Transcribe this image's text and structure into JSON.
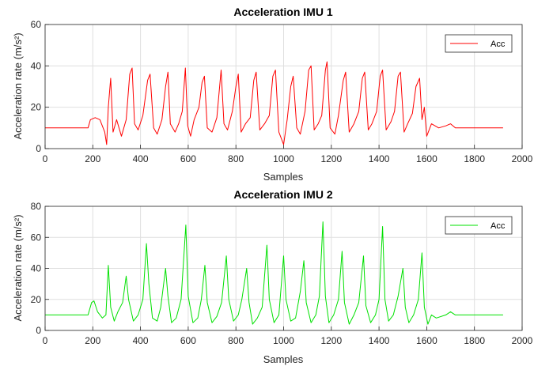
{
  "chart_data": [
    {
      "type": "line",
      "title": "Acceleration IMU 1",
      "xlabel": "Samples",
      "ylabel": "Acceleration rate (m/s²)",
      "xlim": [
        0,
        2000
      ],
      "ylim": [
        0,
        60
      ],
      "xticks": [
        "0",
        "200",
        "400",
        "600",
        "800",
        "1000",
        "1200",
        "1400",
        "1600",
        "1800",
        "2000"
      ],
      "yticks": [
        "0",
        "20",
        "40",
        "60"
      ],
      "grid": true,
      "legend": "top-right",
      "series": [
        {
          "name": "Acc",
          "color": "#ff0000",
          "points": [
            [
              0,
              10
            ],
            [
              180,
              10
            ],
            [
              190,
              14
            ],
            [
              210,
              15
            ],
            [
              230,
              14
            ],
            [
              250,
              8
            ],
            [
              258,
              2
            ],
            [
              265,
              20
            ],
            [
              275,
              34
            ],
            [
              285,
              8
            ],
            [
              300,
              14
            ],
            [
              320,
              6
            ],
            [
              340,
              14
            ],
            [
              355,
              36
            ],
            [
              365,
              39
            ],
            [
              375,
              12
            ],
            [
              390,
              9
            ],
            [
              410,
              16
            ],
            [
              430,
              33
            ],
            [
              440,
              36
            ],
            [
              455,
              10
            ],
            [
              470,
              7
            ],
            [
              490,
              14
            ],
            [
              505,
              30
            ],
            [
              515,
              37
            ],
            [
              525,
              12
            ],
            [
              545,
              8
            ],
            [
              560,
              12
            ],
            [
              575,
              18
            ],
            [
              588,
              39
            ],
            [
              598,
              11
            ],
            [
              610,
              6
            ],
            [
              625,
              14
            ],
            [
              645,
              20
            ],
            [
              658,
              32
            ],
            [
              668,
              35
            ],
            [
              680,
              10
            ],
            [
              700,
              8
            ],
            [
              720,
              15
            ],
            [
              738,
              38
            ],
            [
              750,
              12
            ],
            [
              765,
              9
            ],
            [
              785,
              18
            ],
            [
              800,
              30
            ],
            [
              810,
              36
            ],
            [
              822,
              8
            ],
            [
              840,
              12
            ],
            [
              860,
              15
            ],
            [
              875,
              33
            ],
            [
              885,
              37
            ],
            [
              900,
              9
            ],
            [
              920,
              12
            ],
            [
              940,
              16
            ],
            [
              955,
              35
            ],
            [
              966,
              38
            ],
            [
              980,
              8
            ],
            [
              1000,
              2
            ],
            [
              1015,
              14
            ],
            [
              1030,
              30
            ],
            [
              1040,
              35
            ],
            [
              1055,
              10
            ],
            [
              1070,
              7
            ],
            [
              1090,
              18
            ],
            [
              1105,
              38
            ],
            [
              1115,
              40
            ],
            [
              1128,
              9
            ],
            [
              1145,
              12
            ],
            [
              1160,
              16
            ],
            [
              1175,
              38
            ],
            [
              1182,
              42
            ],
            [
              1195,
              10
            ],
            [
              1215,
              7
            ],
            [
              1230,
              16
            ],
            [
              1250,
              33
            ],
            [
              1260,
              37
            ],
            [
              1275,
              8
            ],
            [
              1295,
              12
            ],
            [
              1315,
              18
            ],
            [
              1330,
              34
            ],
            [
              1340,
              37
            ],
            [
              1355,
              9
            ],
            [
              1370,
              12
            ],
            [
              1390,
              18
            ],
            [
              1405,
              35
            ],
            [
              1415,
              38
            ],
            [
              1430,
              9
            ],
            [
              1450,
              13
            ],
            [
              1465,
              18
            ],
            [
              1480,
              35
            ],
            [
              1490,
              37
            ],
            [
              1505,
              8
            ],
            [
              1520,
              12
            ],
            [
              1540,
              17
            ],
            [
              1555,
              30
            ],
            [
              1570,
              34
            ],
            [
              1580,
              14
            ],
            [
              1590,
              20
            ],
            [
              1600,
              6
            ],
            [
              1620,
              12
            ],
            [
              1650,
              10
            ],
            [
              1680,
              11
            ],
            [
              1700,
              12
            ],
            [
              1720,
              10
            ],
            [
              1800,
              10
            ],
            [
              1920,
              10
            ]
          ]
        }
      ]
    },
    {
      "type": "line",
      "title": "Acceleration IMU 2",
      "xlabel": "Samples",
      "ylabel": "Acceleration rate (m/s²)",
      "xlim": [
        0,
        2000
      ],
      "ylim": [
        0,
        80
      ],
      "xticks": [
        "0",
        "200",
        "400",
        "600",
        "800",
        "1000",
        "1200",
        "1400",
        "1600",
        "1800",
        "2000"
      ],
      "yticks": [
        "0",
        "20",
        "40",
        "60",
        "80"
      ],
      "grid": true,
      "legend": "top-right",
      "series": [
        {
          "name": "Acc",
          "color": "#00e000",
          "points": [
            [
              0,
              10
            ],
            [
              180,
              10
            ],
            [
              195,
              18
            ],
            [
              205,
              19
            ],
            [
              220,
              12
            ],
            [
              240,
              8
            ],
            [
              255,
              10
            ],
            [
              265,
              42
            ],
            [
              275,
              15
            ],
            [
              290,
              6
            ],
            [
              305,
              12
            ],
            [
              325,
              18
            ],
            [
              340,
              35
            ],
            [
              350,
              20
            ],
            [
              370,
              6
            ],
            [
              390,
              10
            ],
            [
              410,
              20
            ],
            [
              425,
              56
            ],
            [
              435,
              30
            ],
            [
              450,
              8
            ],
            [
              470,
              6
            ],
            [
              485,
              15
            ],
            [
              505,
              40
            ],
            [
              515,
              22
            ],
            [
              530,
              5
            ],
            [
              550,
              8
            ],
            [
              570,
              20
            ],
            [
              590,
              68
            ],
            [
              600,
              22
            ],
            [
              620,
              5
            ],
            [
              640,
              8
            ],
            [
              655,
              20
            ],
            [
              670,
              42
            ],
            [
              680,
              18
            ],
            [
              700,
              5
            ],
            [
              720,
              9
            ],
            [
              740,
              18
            ],
            [
              760,
              48
            ],
            [
              770,
              20
            ],
            [
              790,
              6
            ],
            [
              810,
              10
            ],
            [
              825,
              20
            ],
            [
              845,
              40
            ],
            [
              855,
              18
            ],
            [
              870,
              4
            ],
            [
              890,
              8
            ],
            [
              910,
              15
            ],
            [
              930,
              55
            ],
            [
              940,
              20
            ],
            [
              960,
              5
            ],
            [
              980,
              10
            ],
            [
              1000,
              48
            ],
            [
              1010,
              20
            ],
            [
              1030,
              6
            ],
            [
              1050,
              8
            ],
            [
              1070,
              25
            ],
            [
              1085,
              45
            ],
            [
              1095,
              18
            ],
            [
              1115,
              5
            ],
            [
              1135,
              10
            ],
            [
              1150,
              22
            ],
            [
              1165,
              70
            ],
            [
              1175,
              22
            ],
            [
              1190,
              5
            ],
            [
              1210,
              10
            ],
            [
              1230,
              20
            ],
            [
              1245,
              51
            ],
            [
              1255,
              18
            ],
            [
              1275,
              4
            ],
            [
              1295,
              10
            ],
            [
              1315,
              18
            ],
            [
              1335,
              48
            ],
            [
              1345,
              16
            ],
            [
              1365,
              5
            ],
            [
              1385,
              10
            ],
            [
              1400,
              20
            ],
            [
              1415,
              67
            ],
            [
              1425,
              20
            ],
            [
              1440,
              6
            ],
            [
              1460,
              10
            ],
            [
              1480,
              22
            ],
            [
              1500,
              40
            ],
            [
              1510,
              15
            ],
            [
              1525,
              5
            ],
            [
              1545,
              10
            ],
            [
              1565,
              20
            ],
            [
              1580,
              50
            ],
            [
              1590,
              15
            ],
            [
              1605,
              4
            ],
            [
              1620,
              10
            ],
            [
              1640,
              8
            ],
            [
              1680,
              10
            ],
            [
              1700,
              12
            ],
            [
              1720,
              10
            ],
            [
              1800,
              10
            ],
            [
              1920,
              10
            ]
          ]
        }
      ]
    }
  ]
}
